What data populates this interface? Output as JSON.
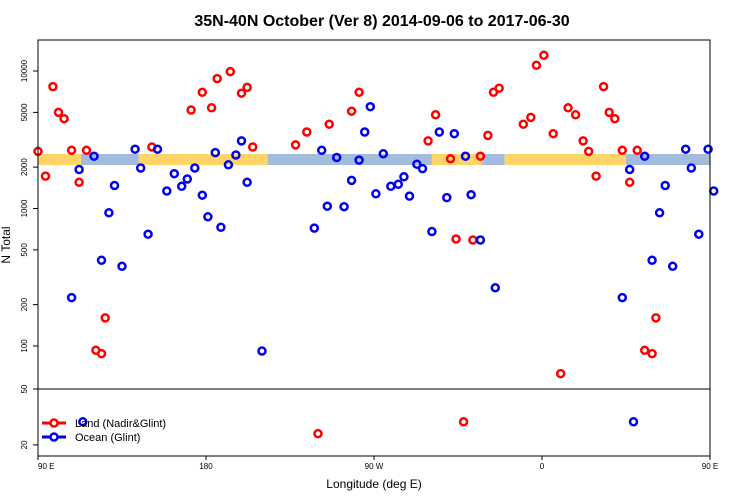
{
  "chart_data": {
    "type": "scatter",
    "title": "35N-40N October (Ver 8)   2014-09-06 to 2017-06-30",
    "xlabel": "Longitude (deg E)",
    "ylabel": "N Total",
    "y_scale": "log",
    "x_tick_labels": [
      "90 E",
      "180",
      "90 W",
      "0",
      "90 E",
      "180"
    ],
    "y_tick_labels_main": [
      "100",
      "200",
      "500",
      "1000",
      "2000",
      "5000",
      "10000"
    ],
    "y_tick_labels_lower": [
      "20",
      "50"
    ],
    "band_colors": {
      "land": "#ffd56a",
      "ocean": "#a3bbdd"
    },
    "series": [
      {
        "name": "Land (Nadir&Glint)",
        "color": "#ff0000",
        "points": [
          [
            90,
            2600
          ],
          [
            94,
            1720
          ],
          [
            98,
            7700
          ],
          [
            101,
            5000
          ],
          [
            104,
            4500
          ],
          [
            108,
            2650
          ],
          [
            112,
            1550
          ],
          [
            116,
            2650
          ],
          [
            121,
            93
          ],
          [
            124,
            88
          ],
          [
            126,
            160
          ],
          [
            228,
            2900
          ],
          [
            240,
            24
          ],
          [
            246,
            4100
          ],
          [
            234,
            3600
          ],
          [
            262,
            7000
          ],
          [
            258,
            5100
          ],
          [
            299,
            3100
          ],
          [
            303,
            4800
          ],
          [
            311,
            2300
          ],
          [
            314,
            600
          ],
          [
            318,
            29
          ],
          [
            323,
            590
          ],
          [
            327,
            2400
          ],
          [
            331,
            3400
          ],
          [
            334,
            7000
          ],
          [
            337,
            7500
          ],
          [
            350,
            4100
          ],
          [
            354,
            4600
          ],
          [
            357,
            11000
          ],
          [
            361,
            13000
          ],
          [
            366,
            3500
          ],
          [
            370,
            63
          ],
          [
            374,
            5400
          ],
          [
            378,
            4800
          ],
          [
            382,
            3100
          ],
          [
            385,
            2600
          ],
          [
            389,
            1720
          ],
          [
            393,
            7700
          ],
          [
            396,
            5000
          ],
          [
            399,
            4500
          ],
          [
            403,
            2650
          ],
          [
            407,
            1550
          ],
          [
            411,
            2650
          ],
          [
            415,
            93
          ],
          [
            419,
            88
          ],
          [
            421,
            160
          ],
          [
            172,
            5200
          ],
          [
            178,
            7000
          ],
          [
            183,
            5400
          ],
          [
            186,
            8800
          ],
          [
            193,
            9900
          ],
          [
            199,
            6900
          ],
          [
            202,
            7600
          ],
          [
            205,
            2800
          ],
          [
            151,
            2800
          ]
        ]
      },
      {
        "name": "Ocean (Glint)",
        "color": "#0000ee",
        "points": [
          [
            108,
            225
          ],
          [
            112,
            1920
          ],
          [
            114,
            29
          ],
          [
            120,
            2400
          ],
          [
            124,
            420
          ],
          [
            128,
            930
          ],
          [
            131,
            1470
          ],
          [
            135,
            380
          ],
          [
            142,
            2700
          ],
          [
            145,
            1970
          ],
          [
            149,
            650
          ],
          [
            154,
            2700
          ],
          [
            159,
            1340
          ],
          [
            163,
            1790
          ],
          [
            167,
            1450
          ],
          [
            170,
            1640
          ],
          [
            174,
            1970
          ],
          [
            178,
            1250
          ],
          [
            181,
            870
          ],
          [
            185,
            2550
          ],
          [
            188,
            730
          ],
          [
            192,
            2080
          ],
          [
            196,
            2450
          ],
          [
            199,
            3100
          ],
          [
            202,
            1550
          ],
          [
            210,
            92
          ],
          [
            238,
            720
          ],
          [
            242,
            2650
          ],
          [
            245,
            1040
          ],
          [
            250,
            2350
          ],
          [
            254,
            1030
          ],
          [
            258,
            1600
          ],
          [
            262,
            2250
          ],
          [
            265,
            3600
          ],
          [
            268,
            5500
          ],
          [
            271,
            1280
          ],
          [
            275,
            2500
          ],
          [
            279,
            1450
          ],
          [
            283,
            1500
          ],
          [
            286,
            1700
          ],
          [
            289,
            1230
          ],
          [
            293,
            2100
          ],
          [
            296,
            1950
          ],
          [
            301,
            680
          ],
          [
            305,
            3600
          ],
          [
            309,
            1200
          ],
          [
            313,
            3500
          ],
          [
            319,
            2400
          ],
          [
            322,
            1260
          ],
          [
            327,
            590
          ],
          [
            335,
            265
          ],
          [
            403,
            225
          ],
          [
            407,
            1920
          ],
          [
            409,
            29
          ],
          [
            415,
            2400
          ],
          [
            419,
            420
          ],
          [
            423,
            930
          ],
          [
            426,
            1470
          ],
          [
            430,
            380
          ],
          [
            437,
            2700
          ],
          [
            440,
            1970
          ],
          [
            444,
            650
          ],
          [
            449,
            2700
          ],
          [
            452,
            1340
          ]
        ]
      }
    ]
  }
}
